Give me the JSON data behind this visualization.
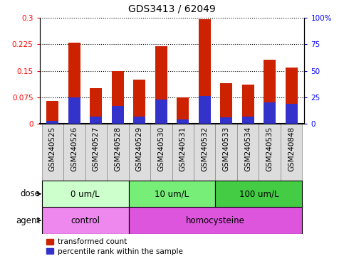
{
  "title": "GDS3413 / 62049",
  "samples": [
    "GSM240525",
    "GSM240526",
    "GSM240527",
    "GSM240528",
    "GSM240529",
    "GSM240530",
    "GSM240531",
    "GSM240532",
    "GSM240533",
    "GSM240534",
    "GSM240535",
    "GSM240848"
  ],
  "transformed_count": [
    0.065,
    0.23,
    0.1,
    0.15,
    0.125,
    0.22,
    0.075,
    0.295,
    0.115,
    0.11,
    0.182,
    0.16
  ],
  "percentile_rank_pct": [
    2.5,
    25.0,
    7.0,
    17.0,
    7.0,
    23.0,
    4.0,
    26.0,
    6.0,
    7.0,
    20.0,
    19.0
  ],
  "ylim_left": [
    0,
    0.3
  ],
  "ylim_right": [
    0,
    100
  ],
  "yticks_left": [
    0,
    0.075,
    0.15,
    0.225,
    0.3
  ],
  "yticks_right": [
    0,
    25,
    50,
    75,
    100
  ],
  "ytick_labels_left": [
    "0",
    "0.075",
    "0.15",
    "0.225",
    "0.3"
  ],
  "ytick_labels_right": [
    "0",
    "25",
    "50",
    "75",
    "100%"
  ],
  "color_red": "#CC2200",
  "color_blue": "#3333CC",
  "dose_groups": [
    {
      "label": "0 um/L",
      "start": 0,
      "end": 4,
      "color": "#ccffcc"
    },
    {
      "label": "10 um/L",
      "start": 4,
      "end": 8,
      "color": "#77ee77"
    },
    {
      "label": "100 um/L",
      "start": 8,
      "end": 12,
      "color": "#44cc44"
    }
  ],
  "agent_groups": [
    {
      "label": "control",
      "start": 0,
      "end": 4,
      "color": "#ee88ee"
    },
    {
      "label": "homocysteine",
      "start": 4,
      "end": 12,
      "color": "#dd55dd"
    }
  ],
  "dose_label": "dose",
  "agent_label": "agent",
  "legend_red": "transformed count",
  "legend_blue": "percentile rank within the sample",
  "bar_width": 0.55,
  "tick_label_fontsize": 7.5,
  "title_fontsize": 10,
  "annot_fontsize": 8.5,
  "legend_fontsize": 7.5,
  "xtick_bg_color": "#dddddd",
  "xtick_border_color": "#888888"
}
